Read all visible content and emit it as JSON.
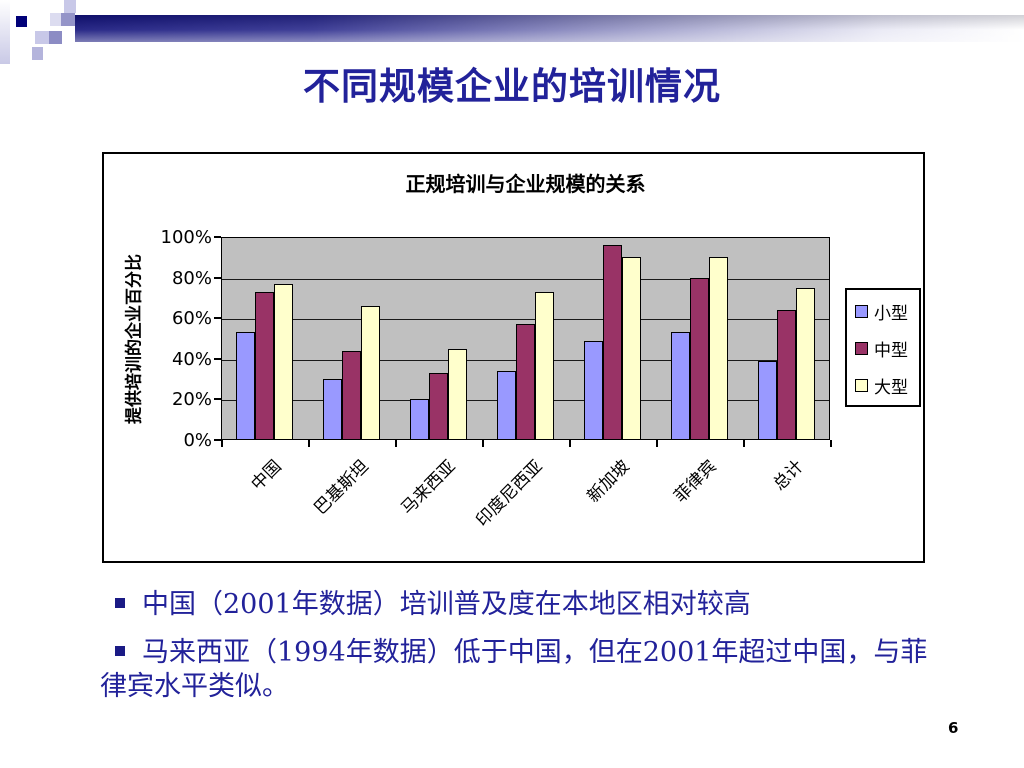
{
  "slide": {
    "title": "不同规模企业的培训情况",
    "page_number": "6",
    "title_color": "#22229a",
    "accent_navy": "#000078"
  },
  "bullets": [
    "中国（2001年数据）培训普及度在本地区相对较高",
    "马来西亚（1994年数据）低于中国，但在2001年超过中国，与菲律宾水平类似。"
  ],
  "chart_data": {
    "type": "bar",
    "title": "正规培训与企业规模的关系",
    "ylabel": "提供培训的企业百分比",
    "xlabel": "",
    "categories": [
      "中国",
      "巴基斯坦",
      "马来西亚",
      "印度尼西亚",
      "新加坡",
      "菲律宾",
      "总计"
    ],
    "series": [
      {
        "name": "小型",
        "color": "#9999FF",
        "values": [
          53,
          30,
          20,
          34,
          49,
          53,
          39
        ]
      },
      {
        "name": "中型",
        "color": "#993366",
        "values": [
          73,
          44,
          33,
          57,
          96,
          80,
          64
        ]
      },
      {
        "name": "大型",
        "color": "#FFFFCC",
        "values": [
          77,
          66,
          45,
          73,
          90,
          90,
          75
        ]
      }
    ],
    "ylim": [
      0,
      100
    ],
    "ytick_labels": [
      "100%",
      "80%",
      "60%",
      "40%",
      "20%",
      "0%"
    ],
    "grid": true,
    "legend_position": "right",
    "plot_background": "#C0C0C0"
  }
}
